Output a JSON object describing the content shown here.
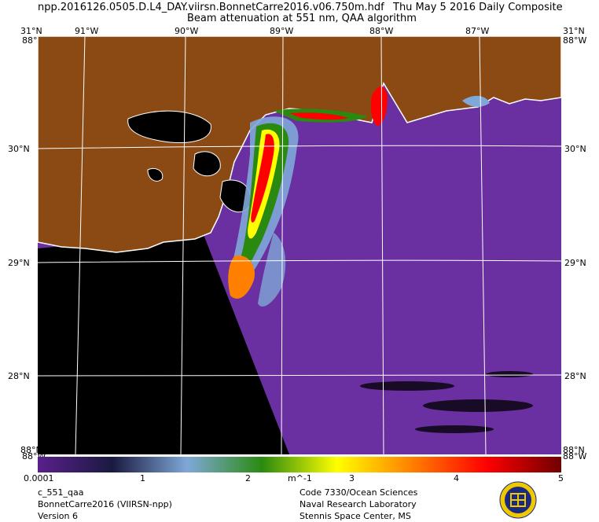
{
  "header": {
    "filename": "npp.2016126.0505.D.L4_DAY.viirsn.BonnetCarre2016.v06.750m.hdf",
    "date": "Thu May  5 2016 Daily Composite",
    "product": "Beam attenuation at 551 nm, QAA algorithm"
  },
  "map": {
    "lon_labels": [
      "91°W",
      "90°W",
      "89°W",
      "88°W",
      "87°W"
    ],
    "lat_labels": [
      "30°N",
      "29°N",
      "28°N"
    ],
    "corners": {
      "top_left_lat": "31°N",
      "top_left_lon": "88°W",
      "top_right_lat": "31°N",
      "top_right_lon": "88°W",
      "bottom_left_lat": "88°N",
      "bottom_left_lon": "88°W",
      "bottom_right_lat": "88°N",
      "bottom_right_lon": "88°W"
    },
    "colors": {
      "land": "#8b4a14",
      "water_low": "#6a2fa0",
      "no_data": "#000000",
      "coast": "#ffffff"
    }
  },
  "colorbar": {
    "ticks": [
      "0.0001",
      "1",
      "2",
      "3",
      "4",
      "5"
    ],
    "unit": "m^-1",
    "colors": [
      "#5a1f8c",
      "#1a1a40",
      "#7fa8d8",
      "#2a8a10",
      "#ffff00",
      "#ff8000",
      "#ff0000",
      "#700000"
    ]
  },
  "footer": {
    "left": [
      "c_551_qaa",
      "BonnetCarre2016 (VIIRSN-npp)",
      "Version 6"
    ],
    "right": [
      "Code 7330/Ocean Sciences",
      "Naval Research Laboratory",
      "Stennis Space Center, MS"
    ]
  }
}
